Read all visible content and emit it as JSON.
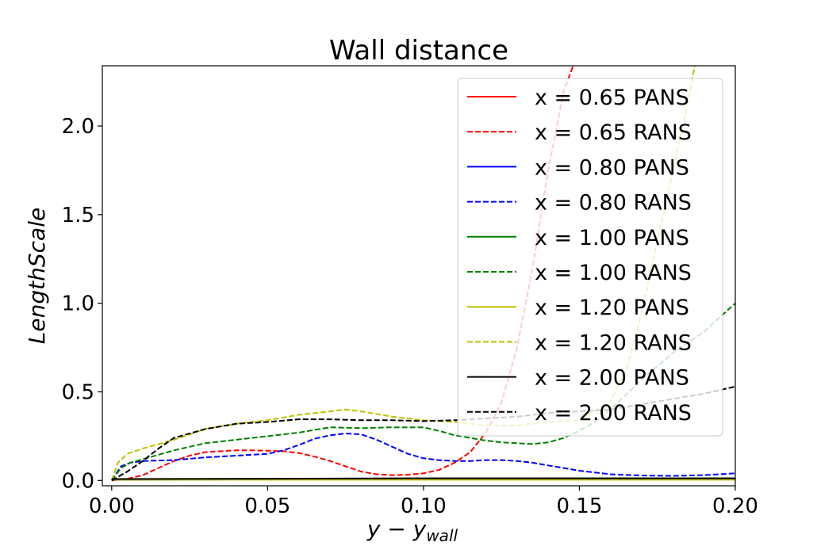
{
  "chart_data": {
    "type": "line",
    "title": "Wall distance",
    "xlabel_main": "y − y",
    "xlabel_sub": "wall",
    "ylabel": "LengthScale",
    "xlim": [
      -0.003,
      0.2
    ],
    "ylim": [
      -0.03,
      2.34
    ],
    "xticks": [
      0.0,
      0.05,
      0.1,
      0.15,
      0.2
    ],
    "xtick_labels": [
      "0.00",
      "0.05",
      "0.10",
      "0.15",
      "0.20"
    ],
    "yticks": [
      0.0,
      0.5,
      1.0,
      1.5,
      2.0
    ],
    "ytick_labels": [
      "0.0",
      "0.5",
      "1.0",
      "1.5",
      "2.0"
    ],
    "grid": false,
    "legend_position": "top-right",
    "series": [
      {
        "name": "x = 0.65 PANS",
        "color": "#ff0000",
        "dash": "solid",
        "x": [
          0.0,
          0.05,
          0.1,
          0.15,
          0.2
        ],
        "y": [
          0.005,
          0.008,
          0.01,
          0.01,
          0.01
        ]
      },
      {
        "name": "x = 0.65 RANS",
        "color": "#ff0000",
        "dash": "dashed",
        "x": [
          0.0,
          0.005,
          0.01,
          0.015,
          0.02,
          0.025,
          0.03,
          0.035,
          0.04,
          0.045,
          0.05,
          0.055,
          0.06,
          0.065,
          0.07,
          0.075,
          0.08,
          0.085,
          0.09,
          0.095,
          0.1,
          0.105,
          0.11,
          0.115,
          0.12,
          0.125,
          0.13,
          0.135,
          0.14,
          0.145,
          0.148
        ],
        "y": [
          0.0,
          0.01,
          0.03,
          0.07,
          0.11,
          0.14,
          0.16,
          0.165,
          0.17,
          0.17,
          0.168,
          0.165,
          0.155,
          0.135,
          0.11,
          0.08,
          0.05,
          0.035,
          0.03,
          0.032,
          0.04,
          0.06,
          0.1,
          0.16,
          0.27,
          0.44,
          0.75,
          1.2,
          1.75,
          2.2,
          2.34
        ]
      },
      {
        "name": "x = 0.80 PANS",
        "color": "#0000ff",
        "dash": "solid",
        "x": [
          0.0,
          0.05,
          0.1,
          0.15,
          0.2
        ],
        "y": [
          0.004,
          0.006,
          0.007,
          0.007,
          0.007
        ]
      },
      {
        "name": "x = 0.80 RANS",
        "color": "#0000ff",
        "dash": "dashed",
        "x": [
          0.0,
          0.003,
          0.006,
          0.01,
          0.02,
          0.03,
          0.04,
          0.05,
          0.055,
          0.06,
          0.065,
          0.07,
          0.075,
          0.08,
          0.085,
          0.09,
          0.095,
          0.1,
          0.105,
          0.11,
          0.115,
          0.12,
          0.125,
          0.13,
          0.135,
          0.14,
          0.145,
          0.15,
          0.155,
          0.16,
          0.17,
          0.18,
          0.19,
          0.2
        ],
        "y": [
          0.0,
          0.08,
          0.1,
          0.11,
          0.115,
          0.13,
          0.14,
          0.15,
          0.17,
          0.2,
          0.235,
          0.255,
          0.265,
          0.26,
          0.23,
          0.19,
          0.15,
          0.125,
          0.115,
          0.11,
          0.11,
          0.115,
          0.115,
          0.11,
          0.1,
          0.085,
          0.07,
          0.055,
          0.045,
          0.035,
          0.028,
          0.026,
          0.03,
          0.04
        ]
      },
      {
        "name": "x = 1.00 PANS",
        "color": "#008000",
        "dash": "solid",
        "x": [
          0.0,
          0.05,
          0.1,
          0.15,
          0.2
        ],
        "y": [
          0.006,
          0.009,
          0.011,
          0.012,
          0.012
        ]
      },
      {
        "name": "x = 1.00 RANS",
        "color": "#008000",
        "dash": "dashed",
        "x": [
          0.0,
          0.003,
          0.006,
          0.01,
          0.02,
          0.03,
          0.04,
          0.05,
          0.06,
          0.07,
          0.08,
          0.09,
          0.1,
          0.105,
          0.11,
          0.115,
          0.12,
          0.125,
          0.13,
          0.135,
          0.14,
          0.145,
          0.15,
          0.155,
          0.16,
          0.17,
          0.18,
          0.19,
          0.2
        ],
        "y": [
          0.0,
          0.07,
          0.1,
          0.12,
          0.17,
          0.21,
          0.23,
          0.25,
          0.27,
          0.3,
          0.295,
          0.3,
          0.3,
          0.28,
          0.255,
          0.24,
          0.225,
          0.215,
          0.21,
          0.205,
          0.215,
          0.24,
          0.28,
          0.33,
          0.4,
          0.57,
          0.72,
          0.84,
          1.0
        ]
      },
      {
        "name": "x = 1.20 PANS",
        "color": "#bfbf00",
        "dash": "solid",
        "x": [
          0.0,
          0.05,
          0.1,
          0.15,
          0.2
        ],
        "y": [
          0.004,
          0.004,
          0.004,
          0.004,
          0.004
        ]
      },
      {
        "name": "x = 1.20 RANS",
        "color": "#bfbf00",
        "dash": "dashed",
        "x": [
          0.0,
          0.002,
          0.005,
          0.01,
          0.02,
          0.03,
          0.04,
          0.05,
          0.06,
          0.07,
          0.075,
          0.08,
          0.09,
          0.1,
          0.11,
          0.12,
          0.13,
          0.14,
          0.15,
          0.16,
          0.165,
          0.17,
          0.175,
          0.18,
          0.185,
          0.187
        ],
        "y": [
          0.0,
          0.1,
          0.15,
          0.18,
          0.23,
          0.29,
          0.32,
          0.34,
          0.37,
          0.39,
          0.4,
          0.39,
          0.36,
          0.34,
          0.33,
          0.31,
          0.31,
          0.33,
          0.34,
          0.45,
          0.62,
          0.95,
          1.35,
          1.75,
          2.15,
          2.34
        ]
      },
      {
        "name": "x = 2.00 PANS",
        "color": "#000000",
        "dash": "solid",
        "x": [
          0.0,
          0.05,
          0.1,
          0.15,
          0.2
        ],
        "y": [
          0.008,
          0.01,
          0.012,
          0.012,
          0.012
        ]
      },
      {
        "name": "x = 2.00 RANS",
        "color": "#000000",
        "dash": "dashed",
        "x": [
          0.0,
          0.005,
          0.01,
          0.015,
          0.02,
          0.03,
          0.04,
          0.05,
          0.06,
          0.07,
          0.08,
          0.09,
          0.1,
          0.11,
          0.12,
          0.13,
          0.14,
          0.15,
          0.16,
          0.17,
          0.18,
          0.19,
          0.2
        ],
        "y": [
          0.0,
          0.05,
          0.11,
          0.18,
          0.24,
          0.29,
          0.32,
          0.33,
          0.345,
          0.345,
          0.34,
          0.34,
          0.335,
          0.34,
          0.35,
          0.36,
          0.38,
          0.39,
          0.4,
          0.43,
          0.46,
          0.49,
          0.53
        ]
      }
    ]
  }
}
